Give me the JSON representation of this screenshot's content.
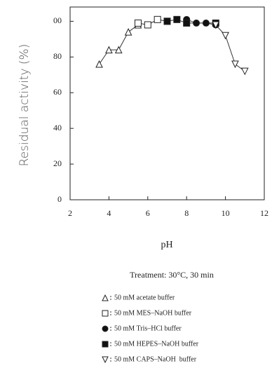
{
  "chart_data": {
    "type": "line",
    "x_label": "pH",
    "y_label": "Residual activity (%)",
    "annotation": "Treatment: 30°C, 30 min",
    "xlim": [
      2,
      12
    ],
    "xticks": [
      2,
      4,
      6,
      8,
      10,
      12
    ],
    "ylim": [
      0,
      108
    ],
    "yticks": [
      0,
      20,
      40,
      60,
      80,
      {
        "value": 100,
        "label": "00"
      }
    ],
    "line_color": "#333333",
    "series": [
      {
        "name": "50 mM acetate buffer",
        "marker": "triangle-up",
        "filled": false,
        "x": [
          3.5,
          4,
          4.5,
          5,
          5.5
        ],
        "values": [
          76,
          84,
          84,
          94,
          98
        ]
      },
      {
        "name": "50 mM MES–NaOH buffer",
        "marker": "square",
        "filled": false,
        "x": [
          5.5,
          6,
          6.5,
          7
        ],
        "values": [
          99,
          98,
          101,
          100
        ]
      },
      {
        "name": "50 mM Tris–HCl buffer",
        "marker": "circle",
        "filled": true,
        "x": [
          8,
          8.5,
          9,
          9.5
        ],
        "values": [
          101,
          99,
          99,
          98
        ]
      },
      {
        "name": "50 mM HEPES–NaOH buffer",
        "marker": "square",
        "filled": true,
        "x": [
          7,
          7.5,
          8,
          9.5
        ],
        "values": [
          100,
          101,
          99,
          99
        ]
      },
      {
        "name": "50 mM CAPS–NaOH  buffer",
        "marker": "triangle-down",
        "filled": false,
        "x": [
          9.5,
          10,
          10.5,
          11
        ],
        "values": [
          98,
          92,
          76,
          72
        ]
      }
    ]
  }
}
